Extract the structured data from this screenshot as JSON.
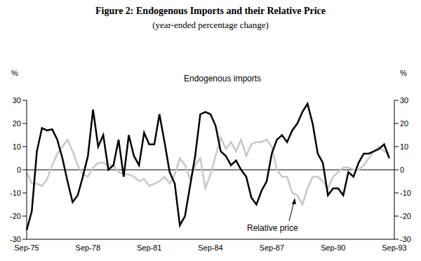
{
  "chart_data": {
    "type": "line",
    "title": "Figure 2: Endogenous Imports and their Relative Price",
    "subtitle": "(year-ended percentage change)",
    "y_label": "%",
    "y2_label": "%",
    "categories": [
      "Sep-75",
      null,
      null,
      null,
      null,
      null,
      null,
      null,
      null,
      null,
      null,
      null,
      "Sep-78",
      null,
      null,
      null,
      null,
      null,
      null,
      null,
      null,
      null,
      null,
      null,
      "Sep-81",
      null,
      null,
      null,
      null,
      null,
      null,
      null,
      null,
      null,
      null,
      null,
      "Sep-84",
      null,
      null,
      null,
      null,
      null,
      null,
      null,
      null,
      null,
      null,
      null,
      "Sep-87",
      null,
      null,
      null,
      null,
      null,
      null,
      null,
      null,
      null,
      null,
      null,
      "Sep-90",
      null,
      null,
      null,
      null,
      null,
      null,
      null,
      null,
      null,
      null,
      null,
      "Sep-93"
    ],
    "series": [
      {
        "name": "Endogenous imports",
        "color": "#000000",
        "values": [
          -26,
          -18,
          8,
          18,
          17,
          17.5,
          13,
          5,
          -5,
          -14,
          -11,
          -3,
          6,
          26,
          10,
          15,
          0,
          2,
          13,
          -3,
          15,
          6,
          2,
          16,
          11,
          11,
          24,
          12,
          -1,
          -6,
          -24,
          -20,
          -7,
          6,
          24,
          25,
          24,
          19,
          8,
          6,
          2,
          4,
          0,
          -3,
          -12,
          -15,
          -9,
          -5,
          7,
          13,
          15,
          12,
          17,
          20,
          25,
          28.5,
          20,
          7,
          3,
          -11,
          -8,
          -8,
          -11,
          -1,
          -3,
          3,
          7,
          7,
          8,
          9,
          11,
          5,
          null
        ]
      },
      {
        "name": "Relative price",
        "color": "#c8c8c8",
        "values": [
          -1,
          -6,
          -6,
          -7,
          -4,
          2,
          7,
          10,
          13,
          8,
          2,
          -2,
          -3,
          1,
          3,
          3,
          2,
          2,
          -1,
          -2,
          -2,
          -3,
          -5,
          -4,
          -7,
          -6,
          -5,
          -3,
          -6,
          -2,
          5,
          2,
          -4,
          2,
          5,
          -8,
          -2,
          6,
          14,
          9,
          12,
          8,
          13,
          6,
          11,
          12,
          12,
          13,
          10,
          0,
          -3,
          -3,
          -10,
          -11,
          -15,
          -8,
          -3,
          -3,
          -5,
          -8,
          -3,
          -1,
          1,
          1,
          0,
          0,
          2,
          5,
          8,
          10,
          8,
          7,
          null
        ]
      }
    ],
    "ylim": [
      -30,
      30
    ],
    "yticks": [
      -30,
      -20,
      -10,
      0,
      10,
      20,
      30
    ],
    "y2lim": [
      -30,
      30
    ],
    "y2ticks": [
      -30,
      -20,
      -10,
      0,
      10,
      20,
      30
    ],
    "grid": false
  }
}
